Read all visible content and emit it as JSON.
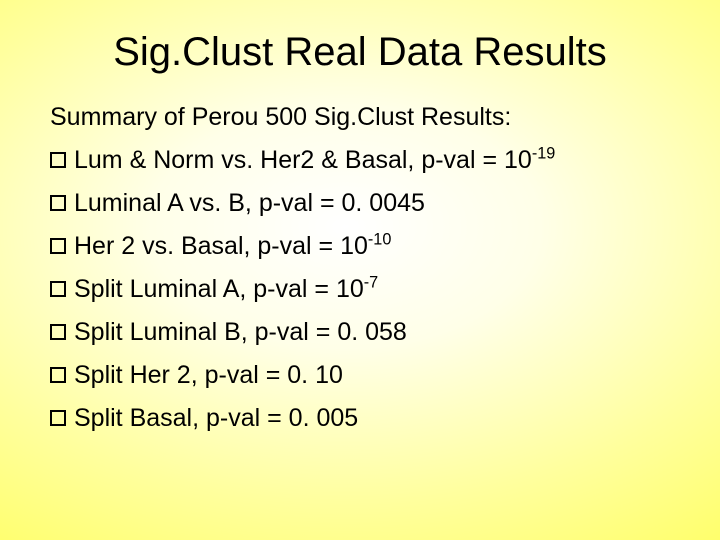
{
  "slide": {
    "title": "Sig.Clust Real Data Results",
    "summary": "Summary of Perou 500 Sig.Clust Results:",
    "bullets": [
      {
        "prefix": "Lum & Norm  vs.  Her2 & Basal,   p-val = 10",
        "sup": "-19",
        "suffix": ""
      },
      {
        "prefix": "Luminal A  vs.  B,   p-val = 0. 0045",
        "sup": "",
        "suffix": ""
      },
      {
        "prefix": "Her 2  vs.  Basal,   p-val = 10",
        "sup": "-10",
        "suffix": ""
      },
      {
        "prefix": "Split Luminal A,    p-val = 10",
        "sup": "-7",
        "suffix": ""
      },
      {
        "prefix": "Split Luminal B,   p-val = 0. 058",
        "sup": "",
        "suffix": ""
      },
      {
        "prefix": "Split Her 2,   p-val = 0. 10",
        "sup": "",
        "suffix": ""
      },
      {
        "prefix": "Split Basal,   p-val = 0. 005",
        "sup": "",
        "suffix": ""
      }
    ],
    "colors": {
      "text": "#000000",
      "background_center": "#ffffff",
      "background_edge": "#ffff66"
    },
    "typography": {
      "title_fontsize": 40,
      "body_fontsize": 25,
      "font_family": "Arial"
    }
  }
}
